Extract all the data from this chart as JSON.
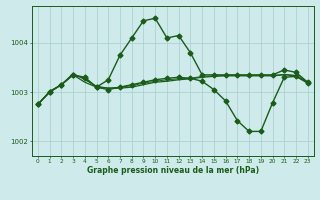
{
  "title": "Graphe pression niveau de la mer (hPa)",
  "background_color": "#ceeaea",
  "grid_color": "#aacccc",
  "line_color": "#1a5c1a",
  "xlim": [
    -0.5,
    23.5
  ],
  "ylim": [
    1001.7,
    1004.75
  ],
  "yticks": [
    1002,
    1003,
    1004
  ],
  "xticks": [
    0,
    1,
    2,
    3,
    4,
    5,
    6,
    7,
    8,
    9,
    10,
    11,
    12,
    13,
    14,
    15,
    16,
    17,
    18,
    19,
    20,
    21,
    22,
    23
  ],
  "series": [
    {
      "x": [
        0,
        1,
        2,
        3,
        4,
        5,
        6,
        7,
        8,
        9,
        10,
        11,
        12,
        13,
        14,
        15,
        16,
        17,
        18,
        19,
        20,
        21,
        22,
        23
      ],
      "y": [
        1002.75,
        1003.0,
        1003.15,
        1003.35,
        1003.3,
        1003.1,
        1003.25,
        1003.75,
        1004.1,
        1004.45,
        1004.5,
        1004.1,
        1004.15,
        1003.8,
        1003.35,
        1003.35,
        1003.35,
        1003.35,
        1003.35,
        1003.35,
        1003.35,
        1003.45,
        1003.4,
        1003.2
      ],
      "marker": "D",
      "markersize": 2.5,
      "linewidth": 1.0
    },
    {
      "x": [
        0,
        1,
        2,
        3,
        4,
        5,
        6,
        7,
        8,
        9,
        10,
        11,
        12,
        13,
        14,
        15,
        16,
        17,
        18,
        19,
        20,
        21,
        22,
        23
      ],
      "y": [
        1002.75,
        1003.0,
        1003.15,
        1003.35,
        1003.2,
        1003.1,
        1003.08,
        1003.08,
        1003.1,
        1003.15,
        1003.2,
        1003.22,
        1003.25,
        1003.27,
        1003.3,
        1003.32,
        1003.33,
        1003.33,
        1003.33,
        1003.33,
        1003.33,
        1003.35,
        1003.33,
        1003.2
      ],
      "marker": null,
      "markersize": 0,
      "linewidth": 0.9
    },
    {
      "x": [
        0,
        1,
        2,
        3,
        4,
        5,
        6,
        7,
        8,
        9,
        10,
        11,
        12,
        13,
        14,
        15,
        16,
        17,
        18,
        19,
        20,
        21,
        22,
        23
      ],
      "y": [
        1002.75,
        1003.02,
        1003.15,
        1003.38,
        1003.25,
        1003.12,
        1003.08,
        1003.1,
        1003.13,
        1003.18,
        1003.22,
        1003.25,
        1003.27,
        1003.28,
        1003.32,
        1003.33,
        1003.34,
        1003.34,
        1003.34,
        1003.34,
        1003.34,
        1003.36,
        1003.34,
        1003.2
      ],
      "marker": null,
      "markersize": 0,
      "linewidth": 0.7
    },
    {
      "x": [
        0,
        1,
        2,
        3,
        4,
        5,
        6,
        7,
        8,
        9,
        10,
        11,
        12,
        13,
        14,
        15,
        16,
        17,
        18,
        19,
        20,
        21,
        22,
        23
      ],
      "y": [
        1002.75,
        1003.0,
        1003.15,
        1003.35,
        1003.28,
        1003.1,
        1003.05,
        1003.1,
        1003.15,
        1003.2,
        1003.25,
        1003.28,
        1003.3,
        1003.28,
        1003.22,
        1003.05,
        1002.82,
        1002.42,
        1002.2,
        1002.2,
        1002.78,
        1003.3,
        1003.32,
        1003.18
      ],
      "marker": "D",
      "markersize": 2.5,
      "linewidth": 1.0
    }
  ]
}
